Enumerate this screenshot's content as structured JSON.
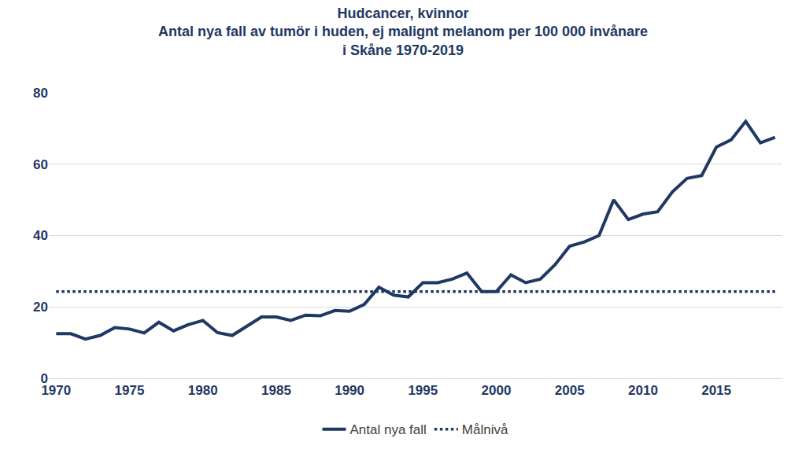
{
  "chart_data": {
    "type": "line",
    "title": "Hudcancer, kvinnor",
    "subtitle": [
      "Antal nya fall av tumör i huden, ej malignt melanom per 100 000 invånare",
      "i Skåne 1970-2019"
    ],
    "x": [
      1970,
      1971,
      1972,
      1973,
      1974,
      1975,
      1976,
      1977,
      1978,
      1979,
      1980,
      1981,
      1982,
      1983,
      1984,
      1985,
      1986,
      1987,
      1988,
      1989,
      1990,
      1991,
      1992,
      1993,
      1994,
      1995,
      1996,
      1997,
      1998,
      1999,
      2000,
      2001,
      2002,
      2003,
      2004,
      2005,
      2006,
      2007,
      2008,
      2009,
      2010,
      2011,
      2012,
      2013,
      2014,
      2015,
      2016,
      2017,
      2018,
      2019
    ],
    "series": [
      {
        "name": "Antal nya fall",
        "color": "#1f3864",
        "line_style": "solid",
        "values": [
          12.5,
          12.5,
          11,
          12,
          14.2,
          13.8,
          12.7,
          15.7,
          13.3,
          15,
          16.2,
          12.8,
          12,
          14.5,
          17.2,
          17.2,
          16.2,
          17.7,
          17.5,
          19,
          18.8,
          20.7,
          25.5,
          23.3,
          22.8,
          26.8,
          26.8,
          27.8,
          29.5,
          24.3,
          24.3,
          29,
          26.8,
          27.8,
          31.8,
          37,
          38.2,
          40,
          50,
          44.5,
          46,
          46.7,
          52.2,
          56,
          56.8,
          64.8,
          66.8,
          72,
          66,
          67.5
        ]
      },
      {
        "name": "Målnivå",
        "color": "#1f3864",
        "line_style": "dot",
        "values": [
          24.3,
          24.3,
          24.3,
          24.3,
          24.3,
          24.3,
          24.3,
          24.3,
          24.3,
          24.3,
          24.3,
          24.3,
          24.3,
          24.3,
          24.3,
          24.3,
          24.3,
          24.3,
          24.3,
          24.3,
          24.3,
          24.3,
          24.3,
          24.3,
          24.3,
          24.3,
          24.3,
          24.3,
          24.3,
          24.3,
          24.3,
          24.3,
          24.3,
          24.3,
          24.3,
          24.3,
          24.3,
          24.3,
          24.3,
          24.3,
          24.3,
          24.3,
          24.3,
          24.3,
          24.3,
          24.3,
          24.3,
          24.3,
          24.3,
          24.3
        ]
      }
    ],
    "xlim": [
      1969.5,
      2019.5
    ],
    "xticks": [
      1970,
      1975,
      1980,
      1985,
      1990,
      1995,
      2000,
      2005,
      2010,
      2015
    ],
    "ylim": [
      0,
      80
    ],
    "yticks": [
      0,
      20,
      40,
      60,
      80
    ],
    "grid": true,
    "legend": "bottom"
  }
}
